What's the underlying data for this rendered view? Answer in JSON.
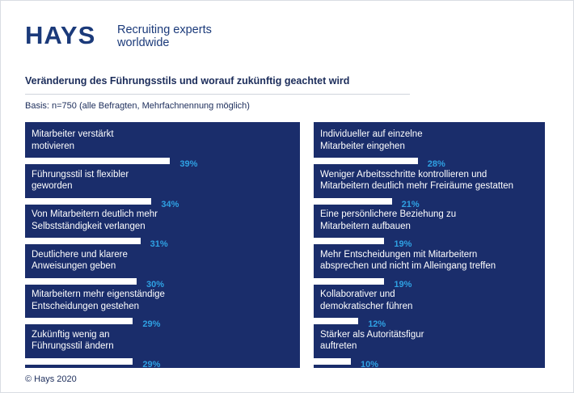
{
  "brand": {
    "logo_text": "HAYS",
    "tagline_line1": "Recruiting experts",
    "tagline_line2": "worldwide"
  },
  "title": "Veränderung des Führungsstils und worauf zukünftig geachtet wird",
  "basis": "Basis: n=750 (alle Befragten, Mehrfachnennung möglich)",
  "footer": "© Hays 2020",
  "colors": {
    "panel": "#1a2d6b",
    "bar": "#ffffff",
    "value": "#2fa1e3"
  },
  "chart_data": {
    "type": "bar",
    "orientation": "horizontal",
    "unit": "%",
    "panels": [
      {
        "items": [
          {
            "label_lines": [
              "Mitarbeiter verstärkt",
              "motivieren"
            ],
            "value": 39,
            "display": "39%"
          },
          {
            "label_lines": [
              "Führungsstil ist flexibler",
              "geworden"
            ],
            "value": 34,
            "display": "34%"
          },
          {
            "label_lines": [
              "Von Mitarbeitern deutlich mehr",
              "Selbstständigkeit verlangen"
            ],
            "value": 31,
            "display": "31%"
          },
          {
            "label_lines": [
              "Deutlichere und klarere",
              "Anweisungen geben"
            ],
            "value": 30,
            "display": "30%"
          },
          {
            "label_lines": [
              "Mitarbeitern mehr eigenständige",
              "Entscheidungen gestehen"
            ],
            "value": 29,
            "display": "29%"
          },
          {
            "label_lines": [
              "Zukünftig wenig an",
              "Führungsstil ändern"
            ],
            "value": 29,
            "display": "29%"
          }
        ]
      },
      {
        "items": [
          {
            "label_lines": [
              "Individueller auf einzelne",
              "Mitarbeiter eingehen"
            ],
            "value": 28,
            "display": "28%"
          },
          {
            "label_lines": [
              "Weniger Arbeitsschritte kontrollieren und",
              "Mitarbeitern deutlich mehr Freiräume gestatten"
            ],
            "value": 21,
            "display": "21%"
          },
          {
            "label_lines": [
              "Eine persönlichere Beziehung zu",
              "Mitarbeitern aufbauen"
            ],
            "value": 19,
            "display": "19%"
          },
          {
            "label_lines": [
              "Mehr Entscheidungen mit Mitarbeitern",
              "absprechen und nicht im Alleingang treffen"
            ],
            "value": 19,
            "display": "19%"
          },
          {
            "label_lines": [
              "Kollaborativer und",
              "demokratischer führen"
            ],
            "value": 12,
            "display": "12%"
          },
          {
            "label_lines": [
              "Stärker als Autoritätsfigur",
              "auftreten"
            ],
            "value": 10,
            "display": "10%"
          }
        ]
      }
    ]
  }
}
